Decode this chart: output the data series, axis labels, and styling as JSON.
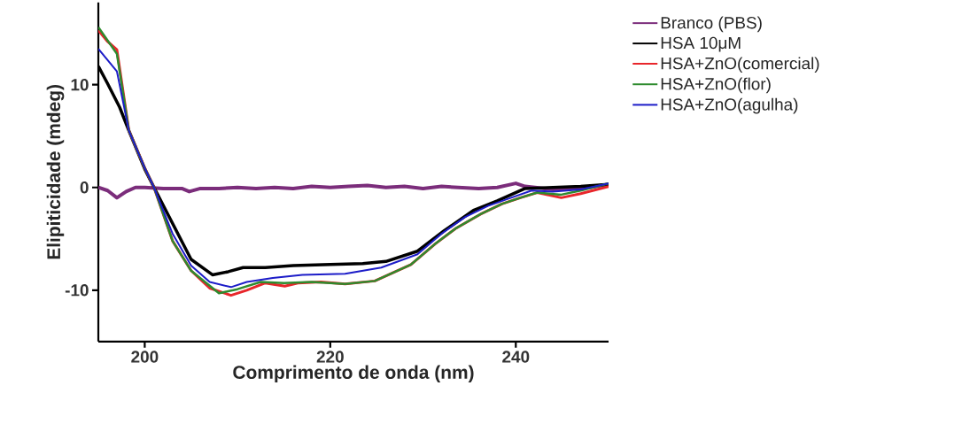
{
  "chart_data": {
    "type": "line",
    "xlabel": "Comprimento de onda (nm)",
    "ylabel": "Elipiticidade (mdeg)",
    "xlim": [
      195,
      250
    ],
    "ylim": [
      -15,
      18
    ],
    "xticks": [
      200,
      220,
      240
    ],
    "yticks": [
      -10,
      0,
      10
    ],
    "grid": false,
    "legend": "top right",
    "marker": "none",
    "line_style": "solid",
    "series": [
      {
        "name": "Branco (PBS)",
        "color": "#7b2d7b",
        "x": [
          195,
          196,
          197,
          198,
          199,
          200,
          202,
          204,
          204.8,
          206,
          208,
          210,
          212,
          214,
          216,
          218,
          220,
          222,
          224,
          226,
          228,
          230,
          232,
          234,
          236,
          238,
          240,
          241,
          242,
          244,
          246,
          248,
          250
        ],
        "values": [
          0,
          -0.3,
          -1.0,
          -0.4,
          0,
          0,
          -0.1,
          -0.1,
          -0.4,
          -0.1,
          -0.1,
          0,
          -0.1,
          0,
          -0.1,
          0.1,
          0,
          0.1,
          0.2,
          0,
          0.1,
          -0.1,
          0.1,
          0,
          -0.1,
          0,
          0.4,
          0.1,
          0,
          -0.2,
          -0.1,
          0,
          0.3
        ]
      },
      {
        "name": "HSA 10μM",
        "color": "#000000",
        "x": [
          195,
          196,
          197.3,
          198.3,
          200,
          201,
          203,
          205,
          207.3,
          209,
          210.6,
          213,
          216,
          220,
          223.5,
          226,
          229.4,
          232.3,
          235.5,
          238,
          241,
          244,
          247,
          250
        ],
        "values": [
          11.8,
          10.1,
          7.8,
          5.5,
          1.8,
          0,
          -3.5,
          -7.0,
          -8.5,
          -8.2,
          -7.8,
          -7.8,
          -7.6,
          -7.5,
          -7.4,
          -7.2,
          -6.2,
          -4.2,
          -2.2,
          -1.3,
          -0.1,
          0,
          0.1,
          0.3
        ]
      },
      {
        "name": "HSA+ZnO(comercial)",
        "color": "#e8262b",
        "x": [
          195,
          196,
          197,
          198.3,
          200,
          201,
          203,
          205,
          207,
          209.3,
          211,
          213,
          215.1,
          216.5,
          219,
          221.6,
          224.8,
          228.7,
          231.3,
          233.5,
          236.2,
          238.5,
          240.5,
          242.3,
          244.9,
          247,
          250
        ],
        "values": [
          15.3,
          14.2,
          13.4,
          5.5,
          1.9,
          0,
          -5.2,
          -8.1,
          -9.8,
          -10.5,
          -10.0,
          -9.3,
          -9.6,
          -9.3,
          -9.2,
          -9.4,
          -9.1,
          -7.5,
          -5.5,
          -4.0,
          -2.6,
          -1.6,
          -1.0,
          -0.5,
          -1.0,
          -0.6,
          0.1
        ]
      },
      {
        "name": "HSA+ZnO(flor)",
        "color": "#2e8b2e",
        "x": [
          195,
          196,
          197,
          198.3,
          200,
          201,
          203,
          205,
          208,
          210,
          212.5,
          215,
          218,
          221.6,
          224.8,
          228.7,
          231.3,
          233.5,
          236.2,
          238.5,
          240.5,
          242.3,
          244.9,
          247,
          250
        ],
        "values": [
          15.6,
          14.3,
          13.0,
          5.5,
          1.9,
          0,
          -5.2,
          -8.1,
          -10.3,
          -9.9,
          -9.2,
          -9.3,
          -9.2,
          -9.4,
          -9.1,
          -7.5,
          -5.5,
          -4.0,
          -2.6,
          -1.6,
          -1.0,
          -0.5,
          -0.7,
          -0.3,
          0.4
        ]
      },
      {
        "name": "HSA+ZnO(agulha)",
        "color": "#1c1cc8",
        "x": [
          195,
          196,
          197,
          198.3,
          200,
          201,
          203,
          205,
          207,
          209.3,
          211,
          213.8,
          217,
          221.6,
          225.5,
          229.4,
          232,
          234.5,
          237,
          239.5,
          241.7,
          244,
          247,
          250
        ],
        "values": [
          13.5,
          12.4,
          11.3,
          5.5,
          1.9,
          0,
          -4.5,
          -7.6,
          -9.2,
          -9.7,
          -9.2,
          -8.8,
          -8.5,
          -8.4,
          -7.8,
          -6.5,
          -4.5,
          -2.9,
          -1.8,
          -1.0,
          -0.3,
          -0.4,
          -0.2,
          0.4
        ]
      }
    ]
  }
}
